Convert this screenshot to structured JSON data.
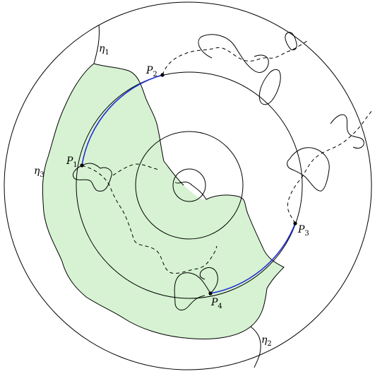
{
  "labels": {
    "p1": {
      "main": "P",
      "sub": "1"
    },
    "p2": {
      "main": "P",
      "sub": "2"
    },
    "p3": {
      "main": "P",
      "sub": "3"
    },
    "p4": {
      "main": "P",
      "sub": "4"
    },
    "eta1": {
      "main": "η",
      "sub": "1"
    },
    "eta2": {
      "main": "η",
      "sub": "2"
    },
    "eta3": {
      "main": "η",
      "sub": "3"
    }
  },
  "colors": {
    "region_fill": "#d6f2d2",
    "arc_blue": "#1f2fd6",
    "stroke": "#000000"
  }
}
